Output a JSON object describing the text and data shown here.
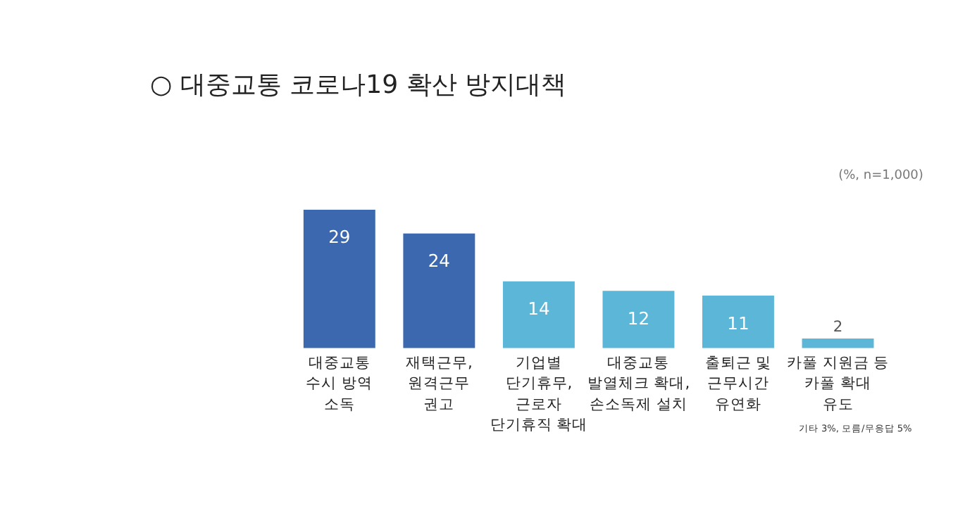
{
  "chart_data": {
    "type": "bar",
    "title": "○ 대중교통 코로나19 확산 방지대책",
    "subtitle": "(%, n=1,000)",
    "categories": [
      "대중교통\n수시 방역\n소독",
      "재택근무,\n원격근무\n권고",
      "기업별\n단기휴무,\n근로자\n단기휴직 확대",
      "대중교통\n발열체크 확대,\n손소독제 설치",
      "출퇴근 및\n근무시간\n유연화",
      "카풀 지원금 등\n카풀 확대\n유도"
    ],
    "values": [
      29,
      24,
      14,
      12,
      11,
      2
    ],
    "colors": [
      "#3b68ae",
      "#3b68ae",
      "#5bb6d8",
      "#5bb6d8",
      "#5bb6d8",
      "#5bb6d8"
    ],
    "data_labels": true,
    "annotations": [
      "기타 3%, 모름/무응답 5%"
    ]
  }
}
